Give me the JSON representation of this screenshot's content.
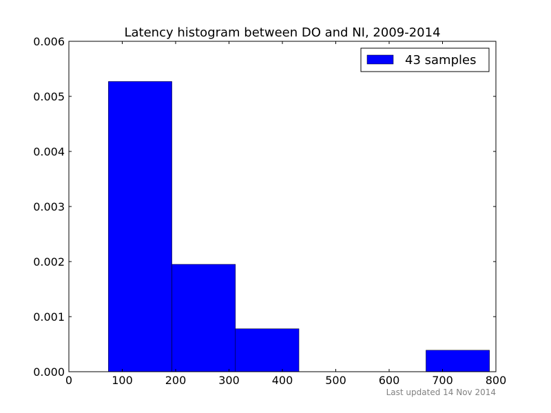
{
  "chart_data": {
    "type": "bar",
    "title": "Latency histogram between DO and NI, 2009-2014",
    "xlabel": "",
    "ylabel": "",
    "xlim": [
      0,
      800
    ],
    "ylim": [
      0,
      0.006
    ],
    "x_ticks": [
      0,
      100,
      200,
      300,
      400,
      500,
      600,
      700,
      800
    ],
    "x_tick_labels": [
      "0",
      "100",
      "200",
      "300",
      "400",
      "500",
      "600",
      "700",
      "800"
    ],
    "y_ticks": [
      0,
      0.001,
      0.002,
      0.003,
      0.004,
      0.005,
      0.006
    ],
    "y_tick_labels": [
      "0.000",
      "0.001",
      "0.002",
      "0.003",
      "0.004",
      "0.005",
      "0.006"
    ],
    "bins": [
      {
        "start": 74,
        "end": 193,
        "value": 0.00527
      },
      {
        "start": 193,
        "end": 312,
        "value": 0.00195
      },
      {
        "start": 312,
        "end": 431,
        "value": 0.00078
      },
      {
        "start": 431,
        "end": 550,
        "value": 0
      },
      {
        "start": 550,
        "end": 669,
        "value": 0
      },
      {
        "start": 669,
        "end": 788,
        "value": 0.00039
      }
    ],
    "series": [
      {
        "name": "43 samples",
        "color": "#0000ff"
      }
    ],
    "legend_position": "top-right",
    "grid": false
  },
  "footnote": "Last updated 14 Nov 2014"
}
